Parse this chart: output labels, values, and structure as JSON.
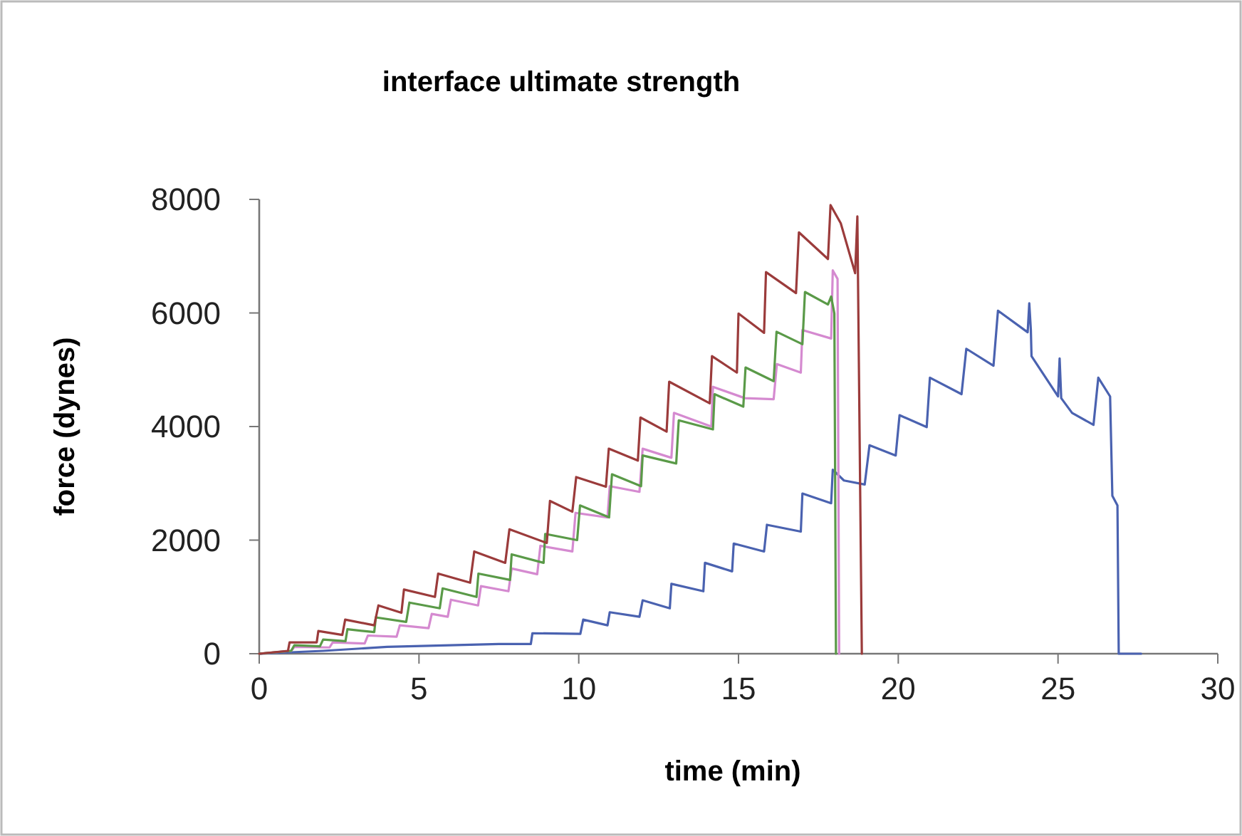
{
  "chart_data": {
    "type": "line",
    "title": "interface ultimate strength",
    "xlabel": "time (min)",
    "ylabel": "force (dynes)",
    "xlim": [
      0,
      30
    ],
    "xticks": [
      0,
      5,
      10,
      15,
      20,
      25,
      30
    ],
    "ylim": [
      0,
      8000
    ],
    "yticks": [
      0,
      2000,
      4000,
      6000,
      8000
    ],
    "grid": false,
    "marker": "none",
    "line_style": "solid",
    "series": [
      {
        "color": "#4a62b0",
        "x": [
          0,
          2,
          4,
          7.5,
          8.5,
          8.55,
          10.05,
          10.14,
          10.9,
          10.97,
          11.9,
          12,
          12.85,
          12.9,
          13.9,
          13.95,
          14.8,
          14.85,
          15.8,
          15.89,
          16.95,
          17,
          17.9,
          17.95,
          18.3,
          18.95,
          19.1,
          19.92,
          20.04,
          20.89,
          20.99,
          21.98,
          22.13,
          22.98,
          23.12,
          24.05,
          24.1,
          24.15,
          24.17,
          25,
          25.05,
          25.1,
          25.44,
          26.11,
          26.26,
          26.63,
          26.7,
          26.86,
          26.9,
          27.6
        ],
        "values": [
          0,
          50,
          120,
          170,
          170,
          360,
          350,
          600,
          500,
          730,
          650,
          940,
          800,
          1230,
          1100,
          1600,
          1450,
          1940,
          1800,
          2270,
          2150,
          2820,
          2650,
          3240,
          3050,
          2980,
          3670,
          3490,
          4200,
          3990,
          4860,
          4570,
          5370,
          5070,
          6040,
          5660,
          6170,
          5700,
          5240,
          4530,
          5200,
          4500,
          4240,
          4030,
          4860,
          4530,
          2780,
          2610,
          0,
          0
        ]
      },
      {
        "color": "#d58ad0",
        "x": [
          0,
          1,
          1.1,
          2.2,
          2.3,
          3.3,
          3.4,
          4.3,
          4.4,
          5.3,
          5.4,
          5.9,
          6,
          6.85,
          6.94,
          7.8,
          7.9,
          8.7,
          8.8,
          9.8,
          9.9,
          10.9,
          10.97,
          11.9,
          12,
          12.9,
          12.98,
          14.15,
          14.2,
          15.2,
          16.1,
          16.2,
          16.95,
          17,
          17.9,
          17.95,
          18.1,
          18.15
        ],
        "values": [
          0,
          50,
          120,
          110,
          200,
          180,
          320,
          300,
          500,
          450,
          700,
          650,
          950,
          850,
          1190,
          1100,
          1500,
          1400,
          1900,
          1800,
          2480,
          2400,
          2950,
          2850,
          3610,
          3450,
          4240,
          4000,
          4700,
          4500,
          4480,
          5100,
          4950,
          5700,
          5550,
          6750,
          6600,
          0
        ]
      },
      {
        "color": "#5a9a48",
        "x": [
          0,
          1,
          1.1,
          1.9,
          2,
          2.7,
          2.76,
          3.6,
          3.65,
          4.6,
          4.7,
          5.65,
          5.74,
          6.8,
          6.86,
          7.85,
          7.9,
          8.9,
          8.95,
          9.95,
          10.04,
          10.95,
          11.04,
          11.95,
          12,
          13.05,
          13.13,
          14.2,
          14.25,
          15.15,
          15.22,
          16.1,
          16.19,
          17,
          17.08,
          17.8,
          17.9,
          18,
          18.05
        ],
        "values": [
          0,
          50,
          150,
          130,
          250,
          220,
          430,
          380,
          640,
          560,
          900,
          800,
          1150,
          1000,
          1410,
          1300,
          1750,
          1600,
          2110,
          2000,
          2610,
          2400,
          3160,
          2950,
          3490,
          3350,
          4110,
          3950,
          4570,
          4350,
          5040,
          4800,
          5670,
          5450,
          6370,
          6150,
          6290,
          5990,
          0
        ]
      },
      {
        "color": "#9b3b3b",
        "x": [
          0,
          0.9,
          0.95,
          1.8,
          1.85,
          2.6,
          2.69,
          3.6,
          3.73,
          4.45,
          4.53,
          5.5,
          5.6,
          6.6,
          6.73,
          7.7,
          7.83,
          9,
          9.1,
          9.8,
          9.92,
          10.85,
          10.94,
          11.85,
          11.93,
          12.75,
          12.83,
          14.1,
          14.17,
          14.95,
          15,
          15.8,
          15.86,
          16.8,
          16.89,
          17.8,
          17.88,
          18.2,
          18.65,
          18.72,
          18.86
        ],
        "values": [
          0,
          50,
          200,
          200,
          400,
          330,
          600,
          500,
          850,
          720,
          1130,
          1000,
          1410,
          1250,
          1800,
          1600,
          2190,
          1950,
          2690,
          2500,
          3110,
          2940,
          3610,
          3400,
          4160,
          3910,
          4790,
          4410,
          5240,
          4950,
          5990,
          5650,
          6720,
          6350,
          7420,
          6950,
          7900,
          7580,
          6700,
          7700,
          0
        ]
      }
    ]
  }
}
